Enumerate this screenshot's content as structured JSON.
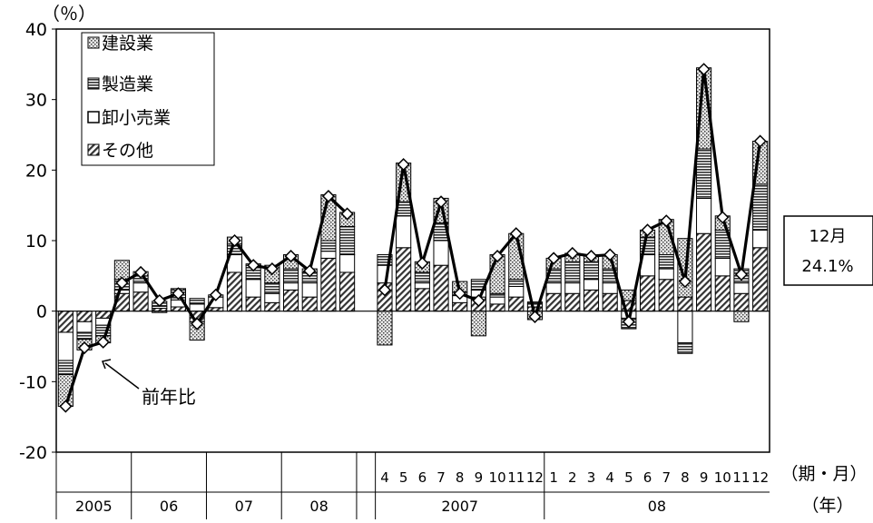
{
  "chart_data": {
    "type": "bar",
    "stacked": true,
    "overlay_line": "前年比",
    "ylabel": "（％）",
    "ylim": [
      -20,
      40
    ],
    "yticks": [
      -20,
      -10,
      0,
      10,
      20,
      30,
      40
    ],
    "x_axis_label_period": "（期・月）",
    "x_axis_label_year": "（年）",
    "legend": [
      {
        "label": "建設業",
        "pattern": "dots"
      },
      {
        "label": "製造業",
        "pattern": "hlines"
      },
      {
        "label": "卸小売業",
        "pattern": "white"
      },
      {
        "label": "その他",
        "pattern": "diag"
      }
    ],
    "legend_position": "top-left",
    "line_annotation": "前年比",
    "callout": {
      "line1": "12月",
      "line2": "24.1%"
    },
    "groups": [
      {
        "year_label": "2005",
        "year_span": 4,
        "period_labels": [
          "",
          "",
          "",
          ""
        ]
      },
      {
        "year_label": "06",
        "year_span": 4,
        "period_labels": [
          "",
          "",
          "",
          ""
        ]
      },
      {
        "year_label": "07",
        "year_span": 4,
        "period_labels": [
          "",
          "",
          "",
          ""
        ]
      },
      {
        "year_label": "08",
        "year_span": 4,
        "period_labels": [
          "",
          "",
          "",
          ""
        ]
      },
      {
        "year_label": "2007",
        "year_span": 9,
        "period_labels": [
          "4",
          "5",
          "6",
          "7",
          "8",
          "9",
          "10",
          "11",
          "12"
        ]
      },
      {
        "year_label": "08",
        "year_span": 12,
        "period_labels": [
          "1",
          "2",
          "3",
          "4",
          "5",
          "6",
          "7",
          "8",
          "9",
          "10",
          "11",
          "12"
        ]
      }
    ],
    "series_order": [
      "その他",
      "卸小売業",
      "製造業",
      "建設業"
    ],
    "bars": [
      {
        "その他": -3.0,
        "卸小売業": -4.0,
        "製造業": -2.0,
        "建設業": -4.5
      },
      {
        "その他": -1.5,
        "卸小売業": -1.5,
        "製造業": -1.0,
        "建設業": -1.5
      },
      {
        "その他": -1.0,
        "卸小売業": -1.0,
        "製造業": -1.5,
        "建設業": -1.0
      },
      {
        "その他": 2.5,
        "卸小売業": 0.5,
        "製造業": 1.5,
        "建設業": 2.7
      },
      {
        "その他": 2.7,
        "卸小売業": 1.3,
        "製造業": 1.0,
        "建設業": 0.6
      },
      {
        "その他": 0.4,
        "卸小売業": 0.3,
        "製造業": 0.7,
        "建設業": -0.2
      },
      {
        "その他": 0.6,
        "卸小売業": 1.0,
        "製造業": 1.4,
        "建設業": 0.2
      },
      {
        "その他": -1.5,
        "卸小売業": 1.0,
        "製造業": 0.8,
        "建設業": -2.6
      },
      {
        "その他": 0.5,
        "卸小売業": 1.5,
        "製造業": 0.0,
        "建設業": 0.3
      },
      {
        "その他": 5.5,
        "卸小売業": 2.5,
        "製造業": 1.5,
        "建設業": 1.0
      },
      {
        "その他": 2.0,
        "卸小売業": 2.5,
        "製造業": 2.0,
        "建設業": 0.2
      },
      {
        "その他": 1.2,
        "卸小売業": 1.3,
        "製造業": 1.5,
        "建設業": 2.5
      },
      {
        "その他": 3.0,
        "卸小売業": 1.0,
        "製造業": 2.0,
        "建設業": 2.0
      },
      {
        "その他": 2.0,
        "卸小売業": 2.0,
        "製造業": 1.5,
        "建設業": 0.5
      },
      {
        "その他": 7.5,
        "卸小売業": 1.0,
        "製造業": 1.5,
        "建設業": 6.5
      },
      {
        "その他": 5.5,
        "卸小売業": 2.5,
        "製造業": 4.0,
        "建設業": 2.0
      },
      {
        "その他": 4.0,
        "卸小売業": 2.5,
        "製造業": 1.5,
        "建設業": -4.8
      },
      {
        "その他": 9.0,
        "卸小売業": 4.5,
        "製造業": 2.0,
        "建設業": 5.5
      },
      {
        "その他": 3.2,
        "卸小売業": 0.8,
        "製造業": 1.5,
        "建設業": 1.5
      },
      {
        "その他": 6.5,
        "卸小売業": 3.5,
        "製造業": 2.5,
        "建設業": 3.5
      },
      {
        "その他": 1.2,
        "卸小売業": 1.0,
        "製造業": 0.5,
        "建設業": 1.5
      },
      {
        "その他": 2.0,
        "卸小売業": 1.0,
        "製造業": 1.5,
        "建設業": -3.5
      },
      {
        "その他": 1.0,
        "卸小売業": 1.0,
        "製造業": 0.5,
        "建設業": 5.5
      },
      {
        "その他": 2.0,
        "卸小売業": 1.5,
        "製造業": 1.0,
        "建設業": 6.5
      },
      {
        "その他": 0.6,
        "卸小売業": 0.4,
        "製造業": 0.3,
        "建設業": -1.2
      },
      {
        "その他": 2.5,
        "卸小売業": 1.5,
        "製造業": 2.0,
        "建設業": 1.5
      },
      {
        "その他": 2.5,
        "卸小売業": 1.5,
        "製造業": 3.0,
        "建設業": 1.2
      },
      {
        "その他": 3.0,
        "卸小売業": 1.5,
        "製造業": 2.5,
        "建設業": 1.0
      },
      {
        "その他": 2.5,
        "卸小売業": 1.5,
        "製造業": 2.0,
        "建設業": 2.0
      },
      {
        "その他": 1.5,
        "卸小売業": -1.0,
        "製造業": -1.5,
        "建設業": 1.5
      },
      {
        "その他": 5.0,
        "卸小売業": 3.0,
        "製造業": 2.5,
        "建設業": 1.0
      },
      {
        "その他": 4.5,
        "卸小売業": 1.5,
        "製造業": 2.0,
        "建設業": 5.0
      },
      {
        "その他": 2.0,
        "卸小売業": -4.5,
        "製造業": -1.5,
        "建設業": 8.3
      },
      {
        "その他": 11.0,
        "卸小売業": 5.0,
        "製造業": 7.0,
        "建設業": 11.5
      },
      {
        "その他": 5.0,
        "卸小売業": 2.5,
        "製造業": 4.0,
        "建設業": 2.0
      },
      {
        "その他": 2.5,
        "卸小売業": 1.5,
        "製造業": 2.0,
        "建設業": -1.5
      },
      {
        "その他": 9.0,
        "卸小売業": 2.5,
        "製造業": 6.5,
        "建設業": 6.1
      }
    ],
    "line_values": [
      -13.5,
      -5.2,
      -4.4,
      4.0,
      5.5,
      1.5,
      2.5,
      -1.8,
      2.3,
      10.0,
      6.5,
      6.0,
      7.8,
      5.7,
      16.3,
      13.8,
      3.0,
      20.8,
      6.8,
      15.5,
      2.5,
      1.5,
      7.8,
      11.0,
      -0.8,
      7.5,
      8.2,
      7.8,
      8.0,
      -1.5,
      11.5,
      12.8,
      4.2,
      34.3,
      13.3,
      5.2,
      24.1
    ]
  }
}
